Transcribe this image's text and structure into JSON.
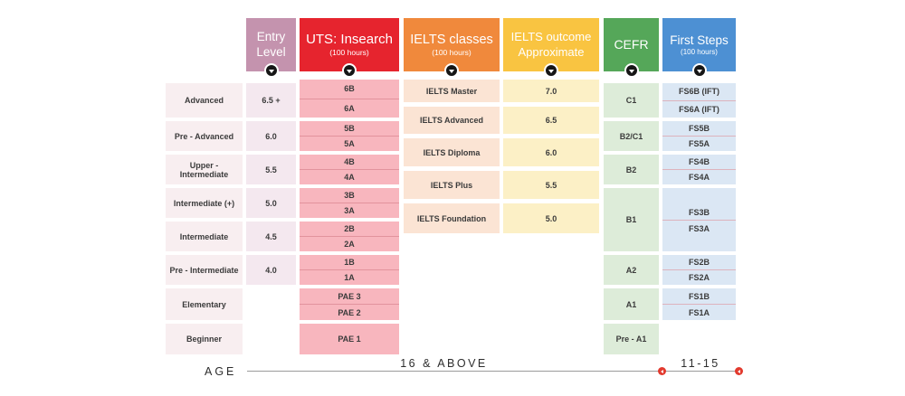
{
  "columns": {
    "levels": {
      "cells": [
        "Advanced",
        "Pre - Advanced",
        "Upper - Intermediate",
        "Intermediate (+)",
        "Intermediate",
        "Pre - Intermediate",
        "Elementary",
        "Beginner"
      ]
    },
    "entry": {
      "header": {
        "title": "Entry Level"
      },
      "cells": [
        "6.5 +",
        "6.0",
        "5.5",
        "5.0",
        "4.5",
        "4.0"
      ]
    },
    "uts": {
      "header": {
        "title": "UTS: Insearch",
        "subtitle": "(100 hours)"
      },
      "pairs": [
        [
          "6B",
          "6A"
        ],
        [
          "5B",
          "5A"
        ],
        [
          "4B",
          "4A"
        ],
        [
          "3B",
          "3A"
        ],
        [
          "2B",
          "2A"
        ],
        [
          "1B",
          "1A"
        ],
        [
          "PAE 3",
          "PAE 2"
        ]
      ],
      "single": "PAE 1"
    },
    "ielts_classes": {
      "header": {
        "title": "IELTS classes",
        "subtitle": "(100 hours)"
      },
      "cells": [
        "IELTS Master",
        "IELTS Advanced",
        "IELTS Diploma",
        "IELTS Plus",
        "IELTS Foundation"
      ]
    },
    "ielts_outcome": {
      "header": {
        "title_line1": "IELTS outcome",
        "title_line2": "Approximate"
      },
      "cells": [
        "7.0",
        "6.5",
        "6.0",
        "5.5",
        "5.0"
      ]
    },
    "cefr": {
      "header": {
        "title": "CEFR"
      },
      "cells": [
        "C1",
        "B2/C1",
        "B2",
        "B1",
        "A2",
        "A1",
        "Pre - A1"
      ]
    },
    "first_steps": {
      "header": {
        "title": "First Steps",
        "subtitle": "(100 hours)"
      },
      "pairs": [
        [
          "FS6B (IFT)",
          "FS6A (IFT)"
        ],
        [
          "FS5B",
          "FS5A"
        ],
        [
          "FS4B",
          "FS4A"
        ],
        [
          "FS3B",
          "FS3A"
        ],
        [
          "FS2B",
          "FS2A"
        ],
        [
          "FS1B",
          "FS1A"
        ]
      ]
    }
  },
  "age_axis": {
    "label": "AGE",
    "segment1": "16 & ABOVE",
    "segment2": "11-15"
  },
  "colors": {
    "entry_header": "#c493ae",
    "entry_cell": "#f4e8ef",
    "labels_cell": "#f8eef0",
    "uts_header": "#e6242e",
    "uts_cell": "#f8b6be",
    "uts_divider": "#e2939d",
    "classes_header": "#f0893c",
    "classes_cell": "#fbe4d4",
    "outcome_header": "#f9c441",
    "outcome_cell": "#fcf0c6",
    "cefr_header": "#55a759",
    "cefr_cell": "#ddecd9",
    "fs_header": "#4d90d3",
    "fs_cell": "#dbe7f4",
    "fs_divider": "#ddb3bd",
    "axis_line": "#9b9b9b",
    "axis_text": "#2d2d2d",
    "dot_red": "#e23a2e",
    "cell_text": "#3b3b3b",
    "header_text": "#ffffff"
  }
}
